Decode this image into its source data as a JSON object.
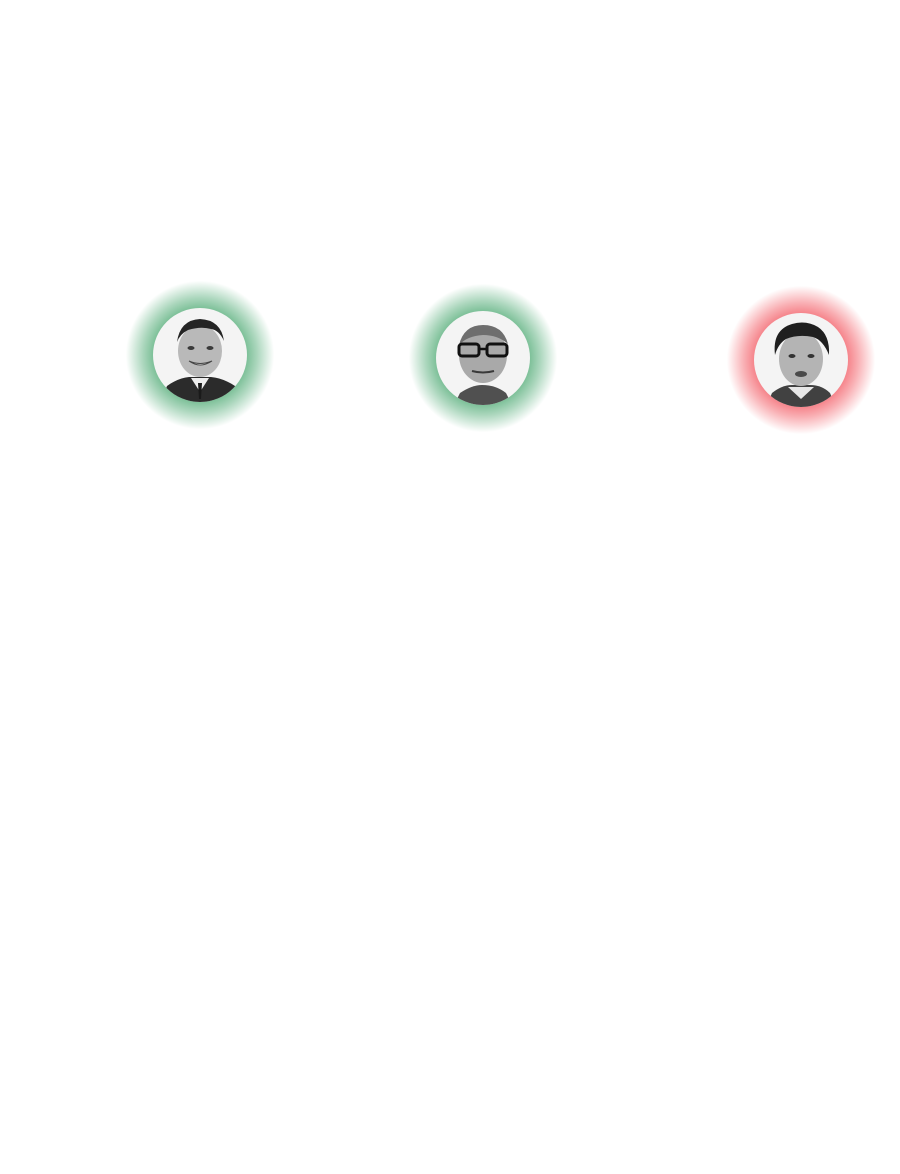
{
  "portraits": [
    {
      "icon": "politician-portrait-1",
      "status": "green",
      "glow_color": "#2e9a5a"
    },
    {
      "icon": "politician-portrait-2",
      "status": "green",
      "glow_color": "#2e9a5a"
    },
    {
      "icon": "politician-portrait-3",
      "status": "red",
      "glow_color": "#f03a45"
    }
  ]
}
